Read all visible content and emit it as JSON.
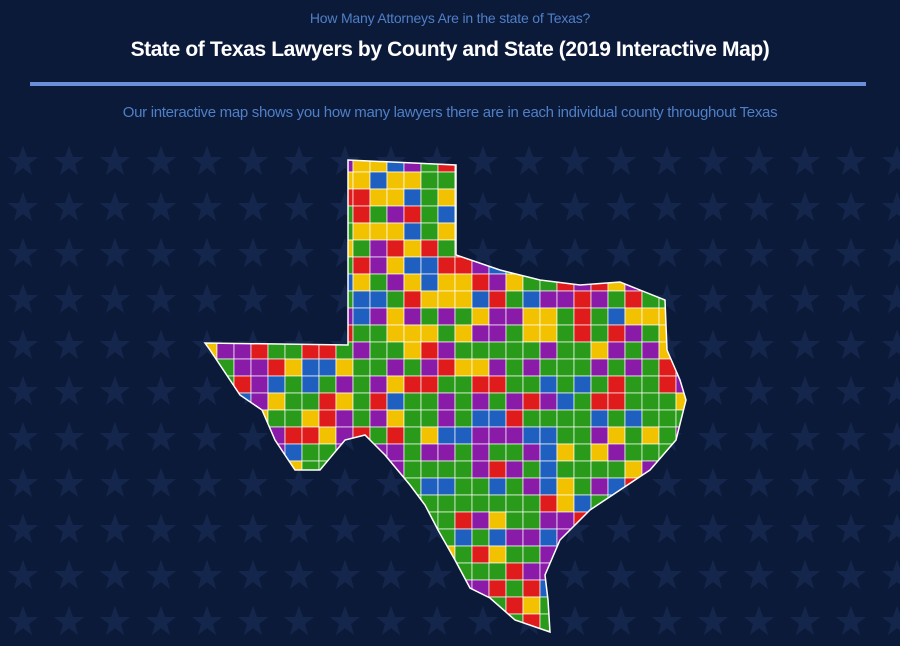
{
  "header": {
    "eyebrow": "How Many Attorneys Are in the state of Texas?",
    "title": "State of Texas Lawyers by County and State (2019 Interactive Map)",
    "subtitle": "Our interactive map shows you how many lawyers there are in each individual county throughout Texas"
  }
}
